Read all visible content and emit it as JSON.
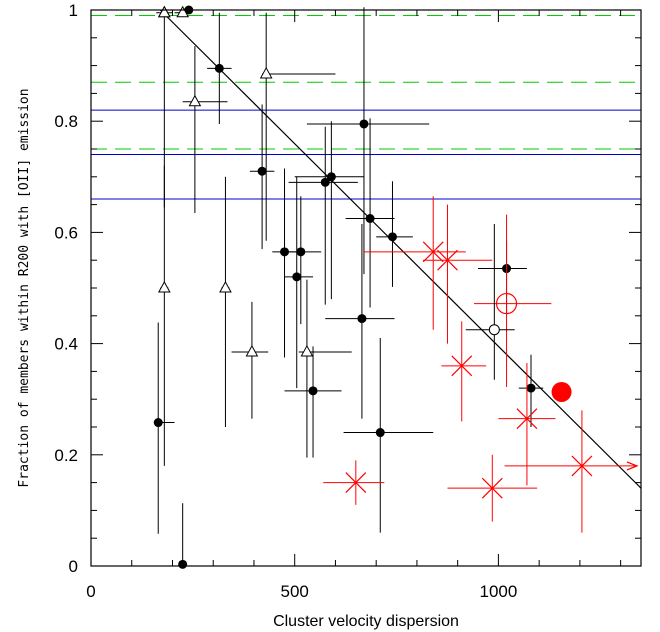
{
  "chart_data": {
    "type": "scatter",
    "xlabel": "Cluster velocity dispersion",
    "ylabel": "Fraction of members within R200 with [OII] emission",
    "xlim": [
      0,
      1350
    ],
    "ylim": [
      0,
      1
    ],
    "x_ticks": [
      0,
      500,
      1000
    ],
    "y_ticks": [
      0,
      0.2,
      0.4,
      0.6,
      0.8,
      1
    ],
    "grid": false,
    "colors": {
      "axis": "#000000",
      "red": "#ff0000",
      "blue": "#0000cc",
      "green": "#00cc00"
    },
    "trend_line": {
      "x": [
        170,
        1350
      ],
      "y": [
        1.0,
        0.14
      ]
    },
    "blue_lines_y": [
      0.82,
      0.74,
      0.66
    ],
    "green_dashed_lines_y": [
      0.99,
      0.87,
      0.75
    ],
    "series": [
      {
        "marker": "filled-circle",
        "color": "#000000",
        "points": [
          {
            "x": 240,
            "y": 1.0,
            "xerr": [
              0,
              0
            ],
            "yerr": [
              0,
              0
            ]
          },
          {
            "x": 315,
            "y": 0.895,
            "xerr": [
              30,
              30
            ],
            "yerr": [
              0.1,
              0.1
            ]
          },
          {
            "x": 420,
            "y": 0.71,
            "xerr": [
              30,
              30
            ],
            "yerr": [
              0.14,
              0.12
            ]
          },
          {
            "x": 475,
            "y": 0.565,
            "xerr": [
              30,
              30
            ],
            "yerr": [
              0.19,
              0.15
            ]
          },
          {
            "x": 505,
            "y": 0.52,
            "xerr": [
              30,
              40
            ],
            "yerr": [
              0.2,
              0.18
            ]
          },
          {
            "x": 515,
            "y": 0.565,
            "xerr": [
              30,
              50
            ],
            "yerr": [
              0.13,
              0.1
            ]
          },
          {
            "x": 575,
            "y": 0.69,
            "xerr": [
              90,
              80
            ],
            "yerr": [
              0.22,
              0.1
            ]
          },
          {
            "x": 590,
            "y": 0.7,
            "xerr": [
              90,
              80
            ],
            "yerr": [
              0.22,
              0.1
            ]
          },
          {
            "x": 670,
            "y": 0.795,
            "xerr": [
              140,
              160
            ],
            "yerr": [
              0.27,
              0.21
            ]
          },
          {
            "x": 685,
            "y": 0.625,
            "xerr": [
              60,
              60
            ],
            "yerr": [
              0.16,
              0.18
            ]
          },
          {
            "x": 740,
            "y": 0.592,
            "xerr": [
              40,
              50
            ],
            "yerr": [
              0.09,
              0.1
            ]
          },
          {
            "x": 665,
            "y": 0.445,
            "xerr": [
              90,
              80
            ],
            "yerr": [
              0.18,
              0.17
            ]
          },
          {
            "x": 545,
            "y": 0.315,
            "xerr": [
              70,
              70
            ],
            "yerr": [
              0.12,
              0.08
            ]
          },
          {
            "x": 710,
            "y": 0.24,
            "xerr": [
              90,
              130
            ],
            "yerr": [
              0.18,
              0.17
            ]
          },
          {
            "x": 1020,
            "y": 0.535,
            "xerr": [
              70,
              50
            ],
            "yerr": [
              0.08,
              0.05
            ]
          },
          {
            "x": 1080,
            "y": 0.32,
            "xerr": [
              30,
              30
            ],
            "yerr": [
              0.07,
              0.06
            ]
          },
          {
            "x": 165,
            "y": 0.258,
            "xerr": [
              10,
              40
            ],
            "yerr": [
              0.2,
              0.18
            ]
          },
          {
            "x": 225,
            "y": 0.003,
            "xerr": [
              0,
              0
            ],
            "yerr": [
              0,
              0.11
            ]
          }
        ]
      },
      {
        "marker": "open-triangle",
        "color": "#000000",
        "points": [
          {
            "x": 180,
            "y": 0.995,
            "xerr": [
              20,
              20
            ],
            "yerr": [
              0.0,
              0.0
            ]
          },
          {
            "x": 225,
            "y": 0.995,
            "xerr": [
              20,
              20
            ],
            "yerr": [
              0.0,
              0.0
            ]
          },
          {
            "x": 255,
            "y": 0.835,
            "xerr": [
              30,
              80
            ],
            "yerr": [
              0.2,
              0.1
            ]
          },
          {
            "x": 430,
            "y": 0.885,
            "xerr": [
              10,
              170
            ],
            "yerr": [
              0.3,
              0.11
            ]
          },
          {
            "x": 180,
            "y": 0.5,
            "xerr": [
              10,
              10
            ],
            "yerr": [
              0.32,
              0.22
            ]
          },
          {
            "x": 330,
            "y": 0.5,
            "xerr": [
              10,
              10
            ],
            "yerr": [
              0.25,
              0.2
            ]
          },
          {
            "x": 395,
            "y": 0.385,
            "xerr": [
              50,
              40
            ],
            "yerr": [
              0.12,
              0.09
            ]
          },
          {
            "x": 530,
            "y": 0.385,
            "xerr": [
              20,
              110
            ],
            "yerr": [
              0.19,
              0.13
            ]
          },
          {
            "x": 180,
            "y": 0.995,
            "xerr": [
              0,
              0
            ],
            "yerr": [
              0.35,
              0.0
            ]
          }
        ]
      },
      {
        "marker": "red-cross",
        "color": "#ff0000",
        "points": [
          {
            "x": 840,
            "y": 0.565,
            "xerr": [
              170,
              80
            ],
            "yerr": [
              0.14,
              0.1
            ]
          },
          {
            "x": 875,
            "y": 0.55,
            "xerr": [
              60,
              110
            ],
            "yerr": [
              0.15,
              0.1
            ]
          },
          {
            "x": 910,
            "y": 0.36,
            "xerr": [
              50,
              60
            ],
            "yerr": [
              0.1,
              0.08
            ]
          },
          {
            "x": 1070,
            "y": 0.265,
            "xerr": [
              70,
              70
            ],
            "yerr": [
              0.12,
              0.1
            ]
          },
          {
            "x": 650,
            "y": 0.15,
            "xerr": [
              80,
              70
            ],
            "yerr": [
              0.04,
              0.04
            ]
          },
          {
            "x": 985,
            "y": 0.14,
            "xerr": [
              110,
              110
            ],
            "yerr": [
              0.06,
              0.06
            ]
          },
          {
            "x": 1205,
            "y": 0.18,
            "xerr": [
              190,
              0
            ],
            "yerr": [
              0.12,
              0.1
            ],
            "lower_limit": true
          }
        ]
      },
      {
        "marker": "red-open-circle",
        "color": "#ff0000",
        "points": [
          {
            "x": 1020,
            "y": 0.472,
            "xerr": [
              80,
              110
            ],
            "yerr": [
              0.15,
              0.16
            ]
          }
        ]
      },
      {
        "marker": "black-open-circle",
        "color": "#000000",
        "points": [
          {
            "x": 990,
            "y": 0.425,
            "xerr": [
              70,
              50
            ],
            "yerr": [
              0.09,
              0.19
            ]
          }
        ]
      },
      {
        "marker": "red-filled-circle",
        "color": "#ff0000",
        "points": [
          {
            "x": 1155,
            "y": 0.313,
            "xerr": [
              0,
              0
            ],
            "yerr": [
              0,
              0
            ]
          }
        ]
      }
    ]
  }
}
